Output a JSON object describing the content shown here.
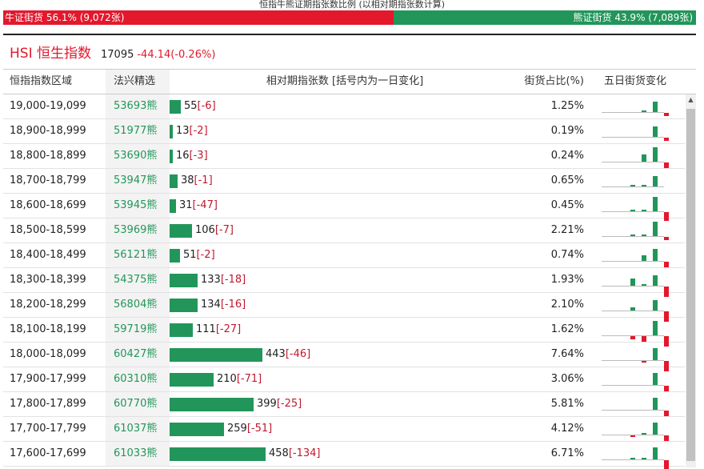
{
  "title": "恒指牛熊证期指张数比例 (以相对期指张数计算)",
  "ratio": {
    "bull_label": "牛证街货 56.1% (9,072张)",
    "bear_label": "熊证街货 43.9% (7,089张)",
    "bull_pct": 56.1,
    "bull_color": "#e3182d",
    "bear_color": "#22965a"
  },
  "index": {
    "name": "HSI 恒生指数",
    "price": "17095",
    "change": "-44.14(-0.26%)"
  },
  "columns": {
    "range": "恒指指数区域",
    "cbbc": "法兴精选",
    "count": "相对期指张数 [括号内为一日变化]",
    "pct": "街货占比(%)",
    "trend": "五日街货变化"
  },
  "rows": [
    {
      "range": "19,000-19,099",
      "code": "53693熊",
      "count": 55,
      "count_label": "55",
      "change": "[-6]",
      "pct": "1.25%",
      "trend": [
        0,
        0,
        1,
        6,
        -2
      ]
    },
    {
      "range": "18,900-18,999",
      "code": "51977熊",
      "count": 13,
      "count_label": "13",
      "change": "[-2]",
      "pct": "0.19%",
      "trend": [
        0,
        0,
        0,
        6,
        -2
      ]
    },
    {
      "range": "18,800-18,899",
      "code": "53690熊",
      "count": 16,
      "count_label": "16",
      "change": "[-3]",
      "pct": "0.24%",
      "trend": [
        0,
        0,
        4,
        8,
        -3
      ]
    },
    {
      "range": "18,700-18,799",
      "code": "53947熊",
      "count": 38,
      "count_label": "38",
      "change": "[-1]",
      "pct": "0.65%",
      "trend": [
        0,
        1,
        1,
        6,
        0
      ]
    },
    {
      "range": "18,600-18,699",
      "code": "53945熊",
      "count": 31,
      "count_label": "31",
      "change": "[-47]",
      "pct": "0.45%",
      "trend": [
        0,
        1,
        1,
        8,
        -5
      ]
    },
    {
      "range": "18,500-18,599",
      "code": "53969熊",
      "count": 106,
      "count_label": "106",
      "change": "[-7]",
      "pct": "2.21%",
      "trend": [
        0,
        1,
        1,
        8,
        -2
      ]
    },
    {
      "range": "18,400-18,499",
      "code": "56121熊",
      "count": 51,
      "count_label": "51",
      "change": "[-2]",
      "pct": "0.74%",
      "trend": [
        0,
        0,
        3,
        7,
        -3
      ]
    },
    {
      "range": "18,300-18,399",
      "code": "54375熊",
      "count": 133,
      "count_label": "133",
      "change": "[-18]",
      "pct": "1.93%",
      "trend": [
        0,
        4,
        1,
        6,
        -6
      ]
    },
    {
      "range": "18,200-18,299",
      "code": "56804熊",
      "count": 134,
      "count_label": "134",
      "change": "[-16]",
      "pct": "2.10%",
      "trend": [
        0,
        2,
        0,
        6,
        -6
      ]
    },
    {
      "range": "18,100-18,199",
      "code": "59719熊",
      "count": 111,
      "count_label": "111",
      "change": "[-27]",
      "pct": "1.62%",
      "trend": [
        0,
        -2,
        -3,
        8,
        -6
      ]
    },
    {
      "range": "18,000-18,099",
      "code": "60427熊",
      "count": 443,
      "count_label": "443",
      "change": "[-46]",
      "pct": "7.64%",
      "trend": [
        0,
        0,
        -1,
        7,
        -6
      ]
    },
    {
      "range": "17,900-17,999",
      "code": "60310熊",
      "count": 210,
      "count_label": "210",
      "change": "[-71]",
      "pct": "3.06%",
      "trend": [
        0,
        0,
        0,
        7,
        -3
      ]
    },
    {
      "range": "17,800-17,899",
      "code": "60770熊",
      "count": 399,
      "count_label": "399",
      "change": "[-25]",
      "pct": "5.81%",
      "trend": [
        0,
        0,
        0,
        7,
        -3
      ]
    },
    {
      "range": "17,700-17,799",
      "code": "61037熊",
      "count": 259,
      "count_label": "259",
      "change": "[-51]",
      "pct": "4.12%",
      "trend": [
        0,
        -1,
        1,
        7,
        -3
      ]
    },
    {
      "range": "17,600-17,699",
      "code": "61033熊",
      "count": 458,
      "count_label": "458",
      "change": "[-134]",
      "pct": "6.71%",
      "trend": [
        0,
        1,
        1,
        7,
        -5
      ]
    }
  ]
}
